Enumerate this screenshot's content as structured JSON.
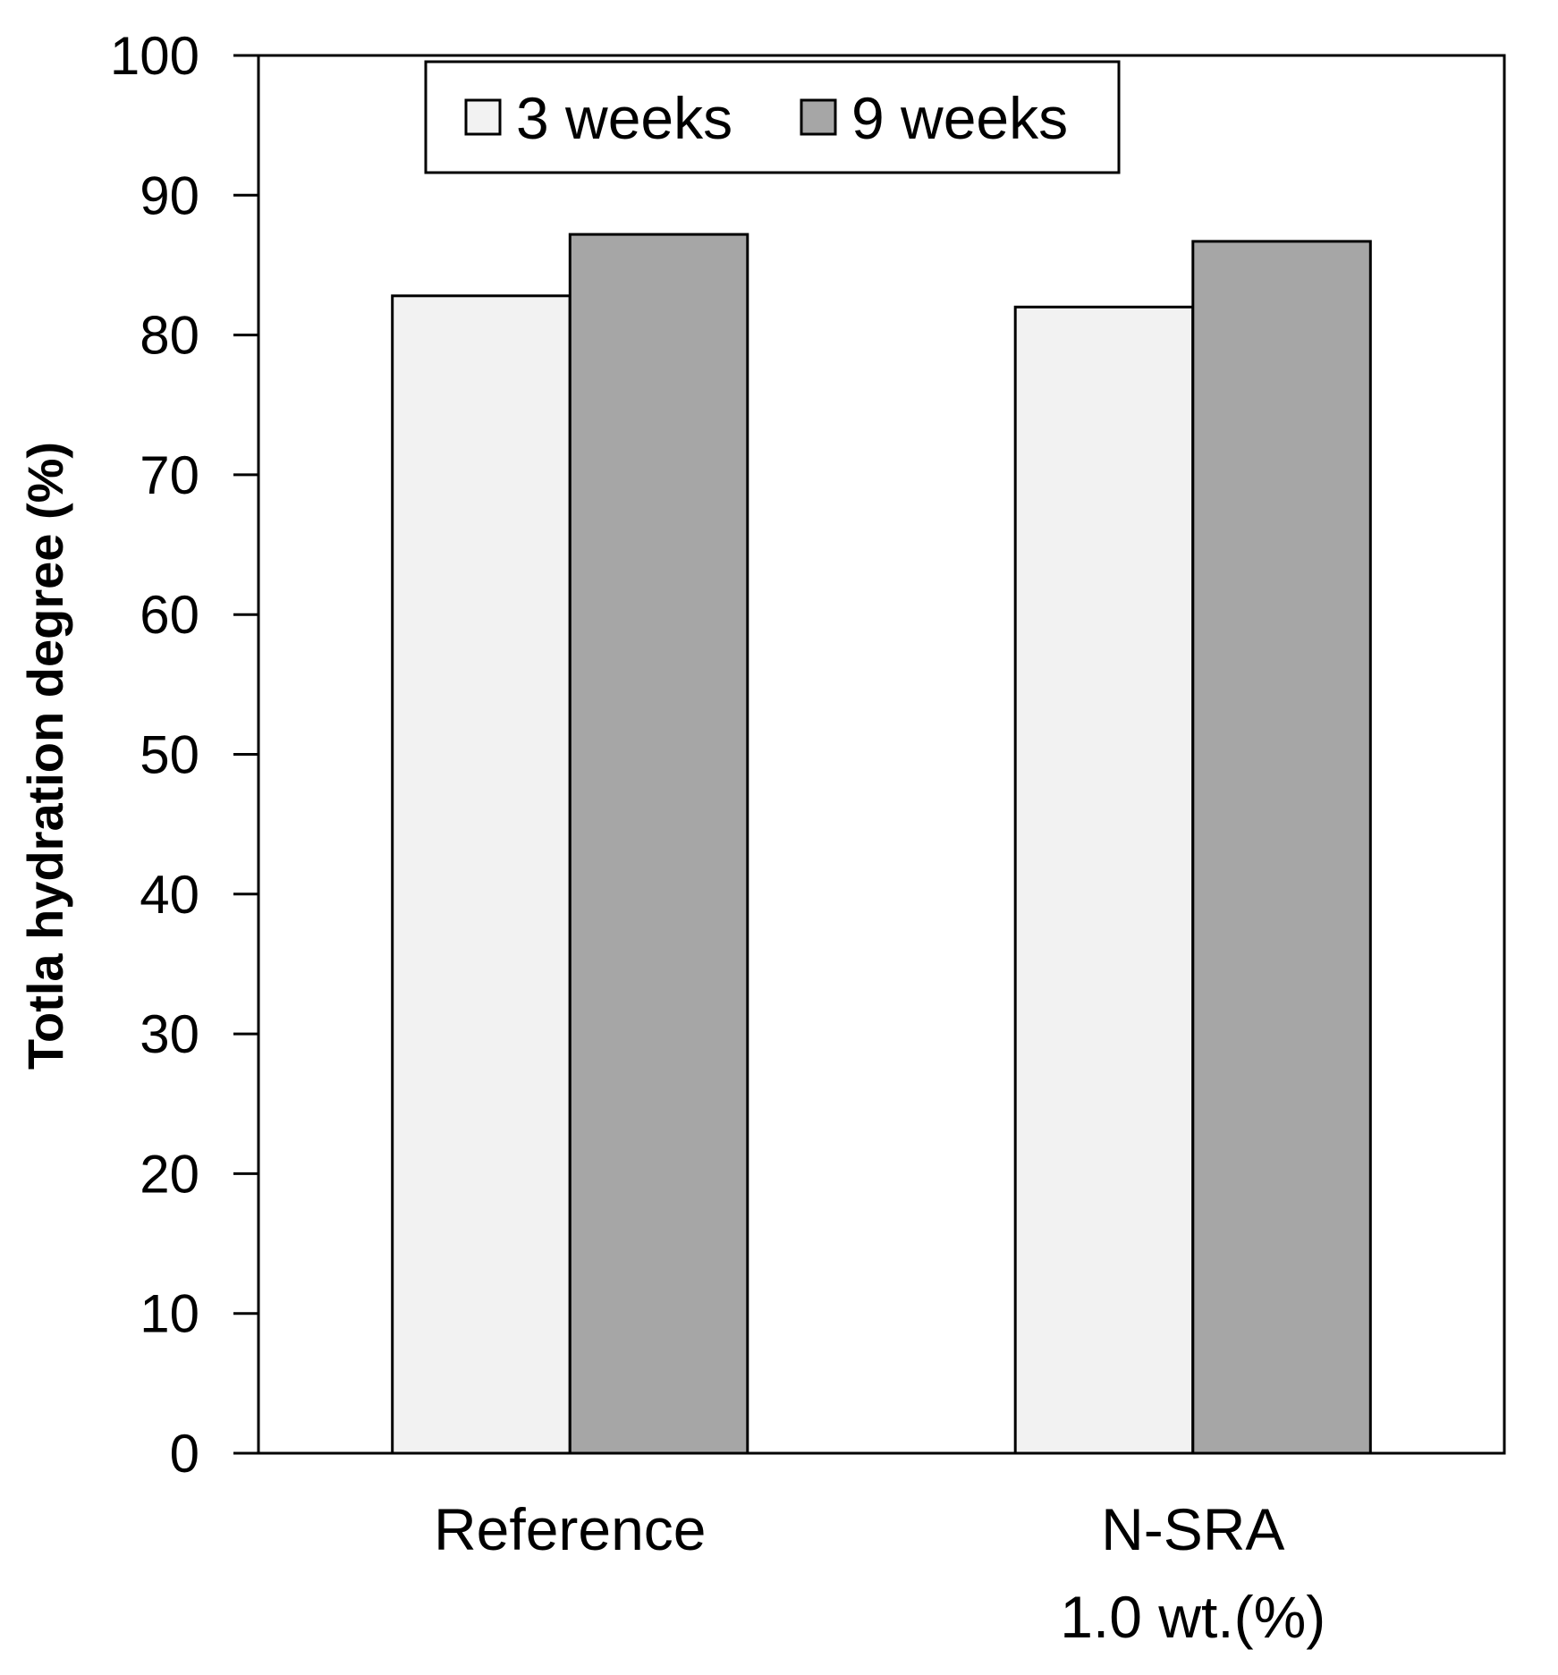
{
  "chart_data": {
    "type": "bar",
    "title": "",
    "xlabel": "",
    "ylabel": "Totla hydration degree  (%)",
    "ylim": [
      0,
      100
    ],
    "yticks": [
      "0",
      "10",
      "20",
      "30",
      "40",
      "50",
      "60",
      "70",
      "80",
      "90",
      "100"
    ],
    "categories": [
      {
        "lines": [
          "Reference"
        ]
      },
      {
        "lines": [
          "N-SRA",
          "1.0 wt.(%)"
        ]
      }
    ],
    "series": [
      {
        "name": "3 weeks",
        "color": "#f2f2f2",
        "values": [
          82.8,
          82.0
        ]
      },
      {
        "name": "9 weeks",
        "color": "#a6a6a6",
        "values": [
          87.2,
          86.7
        ]
      }
    ],
    "legend": {
      "position": "top-left",
      "entries": [
        "3 weeks",
        "9 weeks"
      ]
    },
    "grid": false
  }
}
